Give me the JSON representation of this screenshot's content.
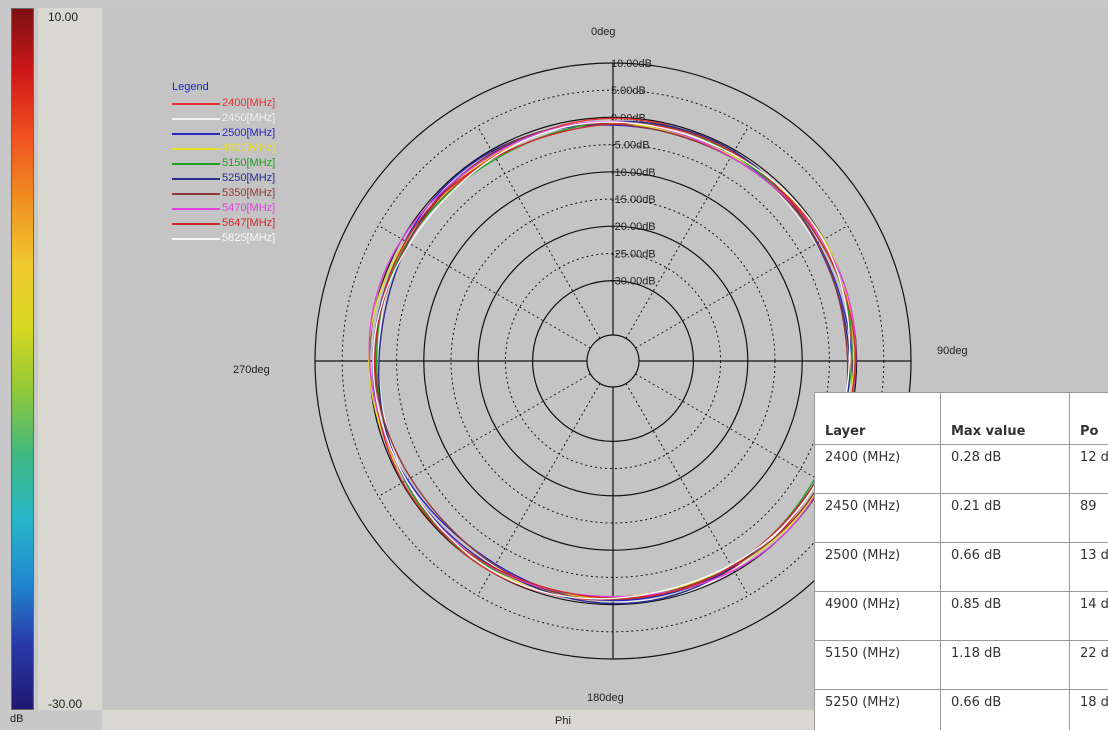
{
  "colorbar": {
    "max_label": "10.00",
    "min_label": "-30.00",
    "unit": "dB",
    "colors": [
      "#7a1010",
      "#d01818",
      "#f05020",
      "#f09020",
      "#f0c830",
      "#d8d820",
      "#90c838",
      "#40b880",
      "#28b8c8",
      "#2088d0",
      "#2838a8",
      "#201870"
    ]
  },
  "chart_data": {
    "type": "polar-line",
    "xlabel": "Phi",
    "angle_labels": [
      {
        "angle": 0,
        "text": "0deg"
      },
      {
        "angle": 90,
        "text": "90deg"
      },
      {
        "angle": 180,
        "text": "180deg"
      },
      {
        "angle": 270,
        "text": "270deg"
      }
    ],
    "rlim": [
      -40,
      10
    ],
    "radial_ticks": [
      {
        "value": 10,
        "label": "10.00dB"
      },
      {
        "value": 5,
        "label": "5.00dB"
      },
      {
        "value": 0,
        "label": "0.00dB"
      },
      {
        "value": -5,
        "label": "-5.00dB"
      },
      {
        "value": -10,
        "label": "-10.00dB"
      },
      {
        "value": -15,
        "label": "-15.00dB"
      },
      {
        "value": -20,
        "label": "-20.00dB"
      },
      {
        "value": -25,
        "label": "-25.00dB"
      },
      {
        "value": -30,
        "label": "-30.00dB"
      }
    ],
    "solid_rings": [
      10,
      0,
      -10,
      -20,
      -30
    ],
    "dashed_rings": [
      5,
      -5,
      -15,
      -25
    ],
    "spoke_step_deg": 30,
    "legend_title": "Legend",
    "legend_position": "top-left",
    "series": [
      {
        "name": "2400[MHz]",
        "color": "#e83030",
        "base": -0.8,
        "amp": 0.9,
        "phase": 20
      },
      {
        "name": "2450[MHz]",
        "color": "#f0f0f0",
        "base": -1.0,
        "amp": 0.8,
        "phase": 60
      },
      {
        "name": "2500[MHz]",
        "color": "#2828c0",
        "base": -0.9,
        "amp": 1.0,
        "phase": 100
      },
      {
        "name": "4900[MHz]",
        "color": "#e8e020",
        "base": -0.7,
        "amp": 1.0,
        "phase": 140
      },
      {
        "name": "5150[MHz]",
        "color": "#20a020",
        "base": -1.1,
        "amp": 0.9,
        "phase": 180
      },
      {
        "name": "5250[MHz]",
        "color": "#2a2a90",
        "base": -1.0,
        "amp": 1.1,
        "phase": 220
      },
      {
        "name": "5350[MHz]",
        "color": "#903838",
        "base": -1.2,
        "amp": 0.8,
        "phase": 260
      },
      {
        "name": "5470[MHz]",
        "color": "#e040e0",
        "base": -0.6,
        "amp": 1.2,
        "phase": 300
      },
      {
        "name": "5647[MHz]",
        "color": "#d02828",
        "base": -0.9,
        "amp": 0.9,
        "phase": 340
      },
      {
        "name": "5825[MHz]",
        "color": "#f8f8f8",
        "base": -1.0,
        "amp": 1.0,
        "phase": 0
      }
    ]
  },
  "table": {
    "headers": [
      "Layer",
      "Max value",
      "Po"
    ],
    "rows": [
      [
        "2400 (MHz)",
        "0.28 dB",
        "12 de"
      ],
      [
        "2450 (MHz)",
        "0.21 dB",
        "89"
      ],
      [
        "2500 (MHz)",
        "0.66 dB",
        "13 de"
      ],
      [
        "4900 (MHz)",
        "0.85 dB",
        "14 de"
      ],
      [
        "5150 (MHz)",
        "1.18 dB",
        "22 de"
      ],
      [
        "5250 (MHz)",
        "0.66 dB",
        "18 de"
      ]
    ]
  }
}
